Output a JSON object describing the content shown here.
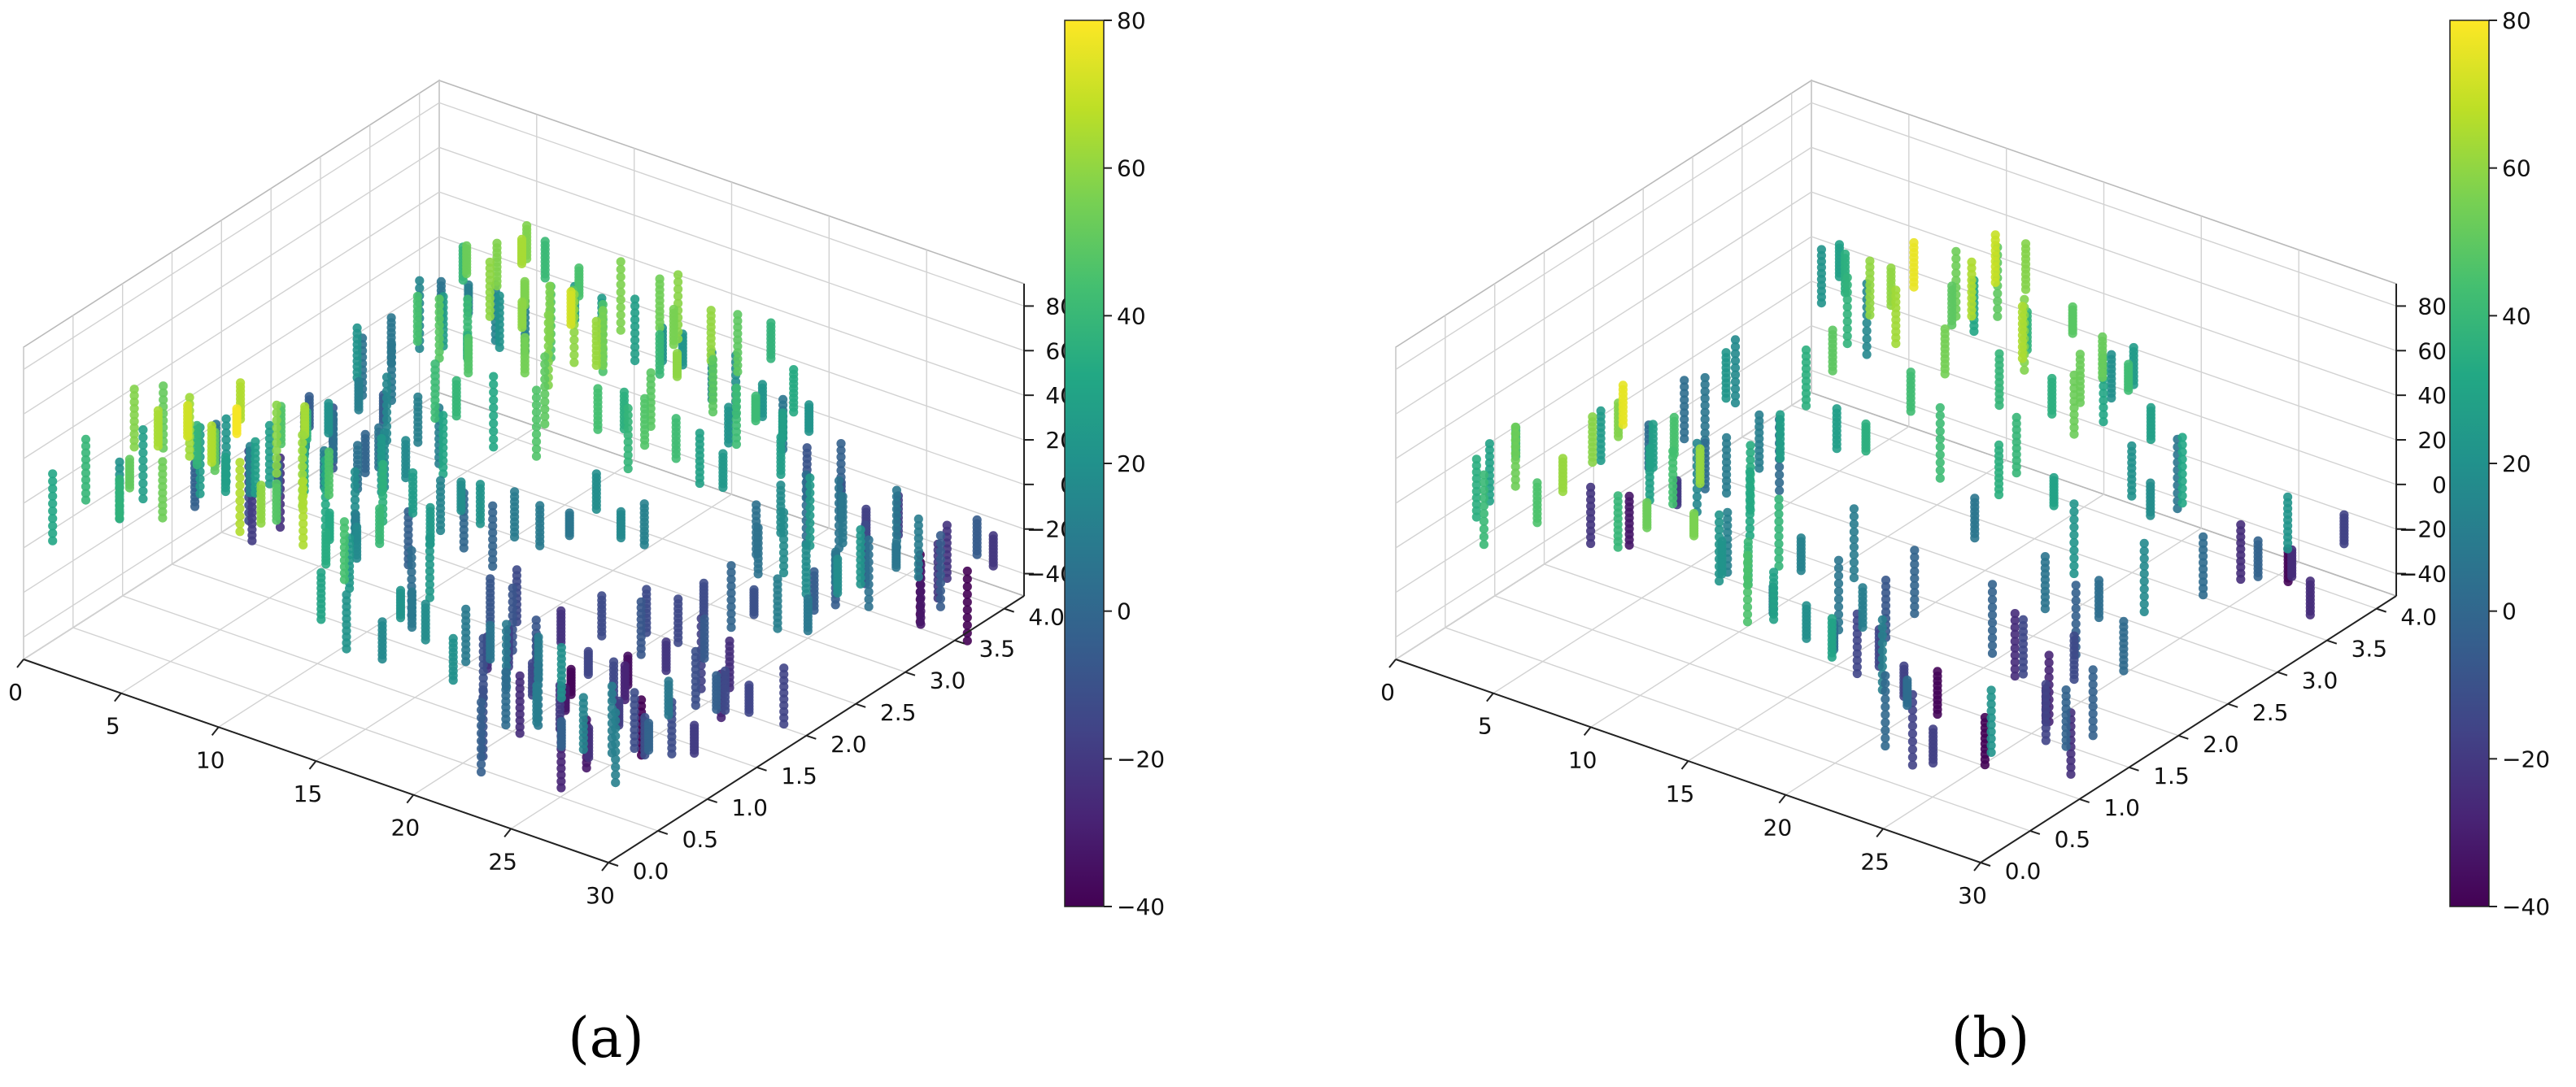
{
  "figure": {
    "panels": [
      {
        "id": "a",
        "label_text": "(a)",
        "density": "dense"
      },
      {
        "id": "b",
        "label_text": "(b)",
        "density": "sparse"
      }
    ]
  },
  "chart_data": [
    {
      "type": "scatter",
      "variant": "3d",
      "panel_label": "(a)",
      "title": "",
      "x_range": [
        0,
        30
      ],
      "x_ticks": [
        "0",
        "5",
        "10",
        "15",
        "20",
        "25",
        "30"
      ],
      "y_range": [
        0,
        4.2
      ],
      "y_ticks": [
        "0.0",
        "0.5",
        "1.0",
        "1.5",
        "2.0",
        "2.5",
        "3.0",
        "3.5",
        "4.0"
      ],
      "z_range": [
        -50,
        90
      ],
      "z_ticks": [
        "80",
        "60",
        "40",
        "20",
        "0",
        "-20",
        "-40"
      ],
      "colorbar": {
        "colormap": "viridis",
        "range": [
          -40,
          80
        ],
        "ticks": [
          "80",
          "60",
          "40",
          "20",
          "0",
          "−20",
          "−40"
        ]
      },
      "grid": true,
      "description_of_points": "Vertical columns of points on an x (0-30) by y (0-4.2) grid; value ranges from about -45 to 85, colour encodes value"
    },
    {
      "type": "scatter",
      "variant": "3d",
      "panel_label": "(b)",
      "title": "",
      "x_range": [
        0,
        30
      ],
      "x_ticks": [
        "0",
        "5",
        "10",
        "15",
        "20",
        "25",
        "30"
      ],
      "y_range": [
        0,
        4.2
      ],
      "y_ticks": [
        "0.0",
        "0.5",
        "1.0",
        "1.5",
        "2.0",
        "2.5",
        "3.0",
        "3.5",
        "4.0"
      ],
      "z_range": [
        -50,
        90
      ],
      "z_ticks": [
        "80",
        "60",
        "40",
        "20",
        "0",
        "-20",
        "-40"
      ],
      "colorbar": {
        "colormap": "viridis",
        "range": [
          -40,
          80
        ],
        "ticks": [
          "80",
          "60",
          "40",
          "20",
          "0",
          "−20",
          "−40"
        ]
      },
      "grid": true,
      "description_of_points": "Sparser subset of the same grid of vertical point columns; colour encodes value"
    }
  ],
  "colors": {
    "viridis": [
      "#440154",
      "#482475",
      "#414487",
      "#355f8d",
      "#2a788e",
      "#21918c",
      "#22a884",
      "#44bf70",
      "#7ad151",
      "#bddf26",
      "#fde725"
    ]
  }
}
